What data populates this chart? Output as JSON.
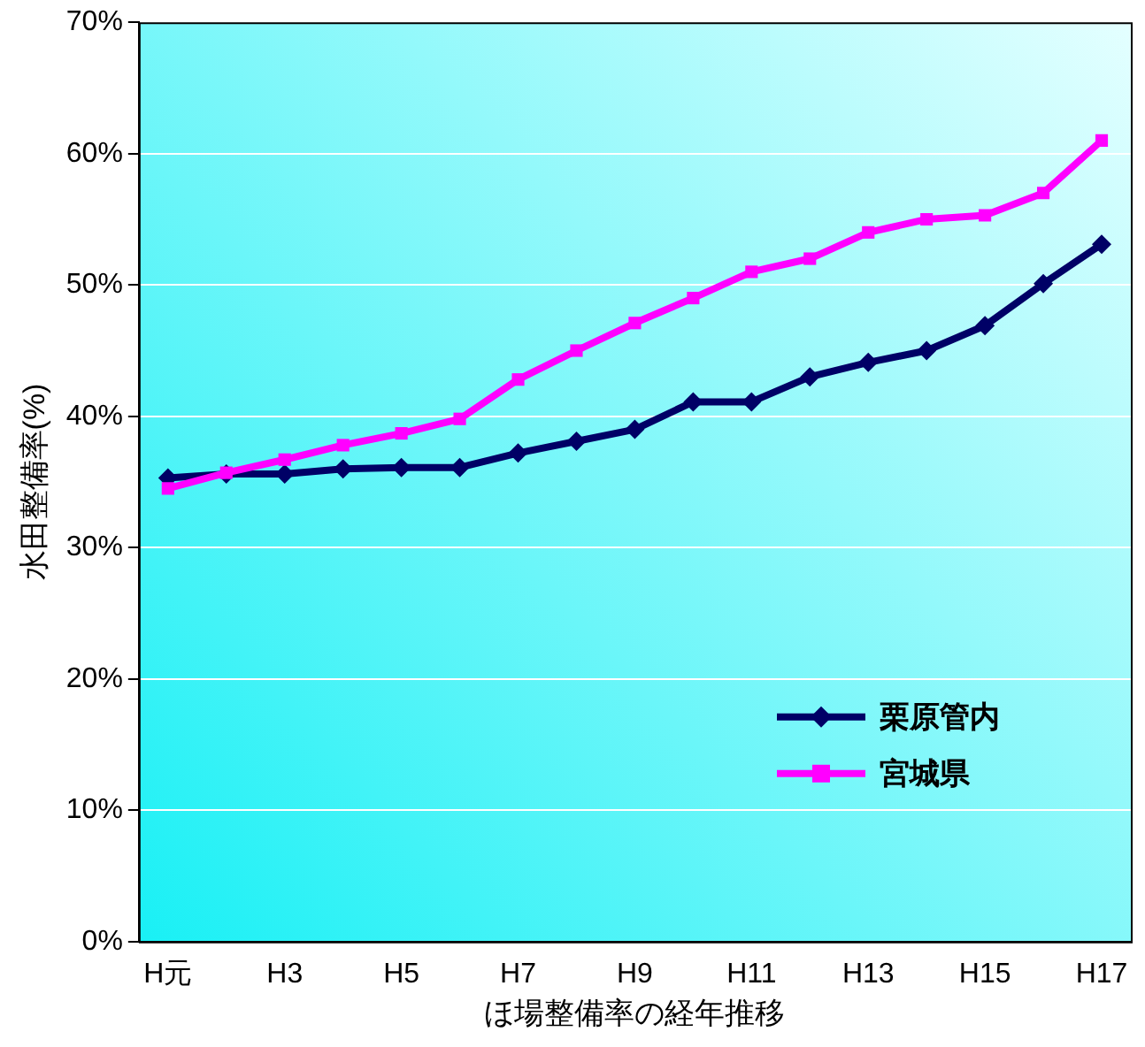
{
  "chart_data": {
    "type": "line",
    "xlabel": "ほ場整備率の経年推移",
    "ylabel": "水田整備率(%)",
    "categories": [
      "H元",
      null,
      "H3",
      null,
      "H5",
      null,
      "H7",
      null,
      "H9",
      null,
      "H11",
      null,
      "H13",
      null,
      "H15",
      null,
      "H17"
    ],
    "series": [
      {
        "name": "栗原管内",
        "color": "#000066",
        "marker": "diamond",
        "values": [
          35.3,
          35.6,
          35.6,
          36.0,
          36.1,
          36.1,
          37.2,
          38.1,
          39.0,
          41.1,
          41.1,
          43.0,
          44.1,
          45.0,
          46.9,
          50.1,
          53.1
        ]
      },
      {
        "name": "宮城県",
        "color": "#ff00ff",
        "marker": "square",
        "values": [
          34.5,
          35.7,
          36.7,
          37.8,
          38.7,
          39.8,
          42.8,
          45.0,
          47.1,
          49.0,
          51.0,
          52.0,
          54.0,
          55.0,
          55.3,
          57.0,
          61.0
        ]
      }
    ],
    "ylim": [
      0,
      70
    ],
    "yticks": [
      {
        "value": 0,
        "label": "0%"
      },
      {
        "value": 10,
        "label": "10%"
      },
      {
        "value": 20,
        "label": "20%"
      },
      {
        "value": 30,
        "label": "30%"
      },
      {
        "value": 40,
        "label": "40%"
      },
      {
        "value": 50,
        "label": "50%"
      },
      {
        "value": 60,
        "label": "60%"
      },
      {
        "value": 70,
        "label": "70%"
      }
    ],
    "grid": "y",
    "legend": "bottom right",
    "line_style": "solid"
  }
}
